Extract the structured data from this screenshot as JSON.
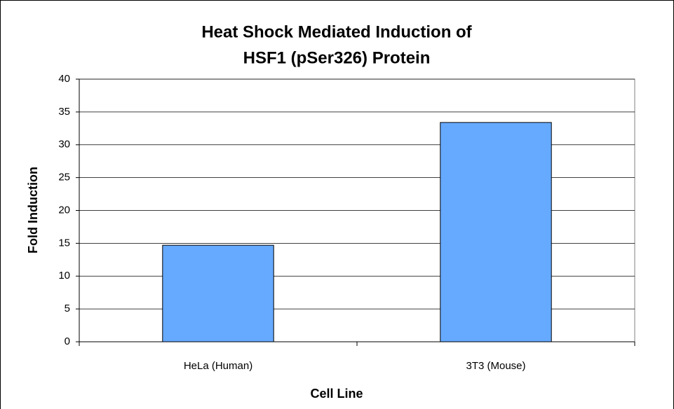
{
  "chart_data": {
    "type": "bar",
    "title": [
      "Heat Shock Mediated Induction of",
      "HSF1 (pSer326) Protein"
    ],
    "xlabel": "Cell Line",
    "ylabel": "Fold Induction",
    "categories": [
      "HeLa (Human)",
      "3T3 (Mouse)"
    ],
    "values": [
      14.7,
      33.4
    ],
    "color": "#66aaff",
    "ylim": [
      0,
      40
    ],
    "yticks": [
      0,
      5,
      10,
      15,
      20,
      25,
      30,
      35,
      40
    ],
    "grid": true
  }
}
